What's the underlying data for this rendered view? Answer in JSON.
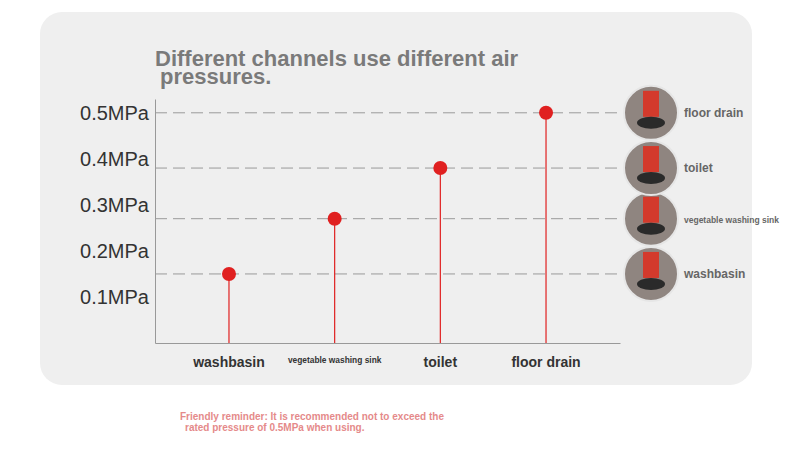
{
  "chart_data": {
    "type": "lollipop",
    "title": "Different channels use different air pressures.",
    "categories": [
      "washbasin",
      "vegetable washing sink",
      "toilet",
      "floor drain"
    ],
    "values": [
      0.15,
      0.27,
      0.38,
      0.5
    ],
    "color": "#e02020",
    "ylim": [
      0,
      0.53
    ],
    "yticks": [
      {
        "value": 0.1,
        "label": "0.1MPa"
      },
      {
        "value": 0.2,
        "label": "0.2MPa"
      },
      {
        "value": 0.3,
        "label": "0.3MPa"
      },
      {
        "value": 0.4,
        "label": "0.4MPa"
      },
      {
        "value": 0.5,
        "label": "0.5MPa"
      }
    ],
    "grid": false,
    "annotations": [
      "Friendly reminder: It is recommended not to exceed the rated pressure of 0.5MPa when using."
    ]
  }
}
